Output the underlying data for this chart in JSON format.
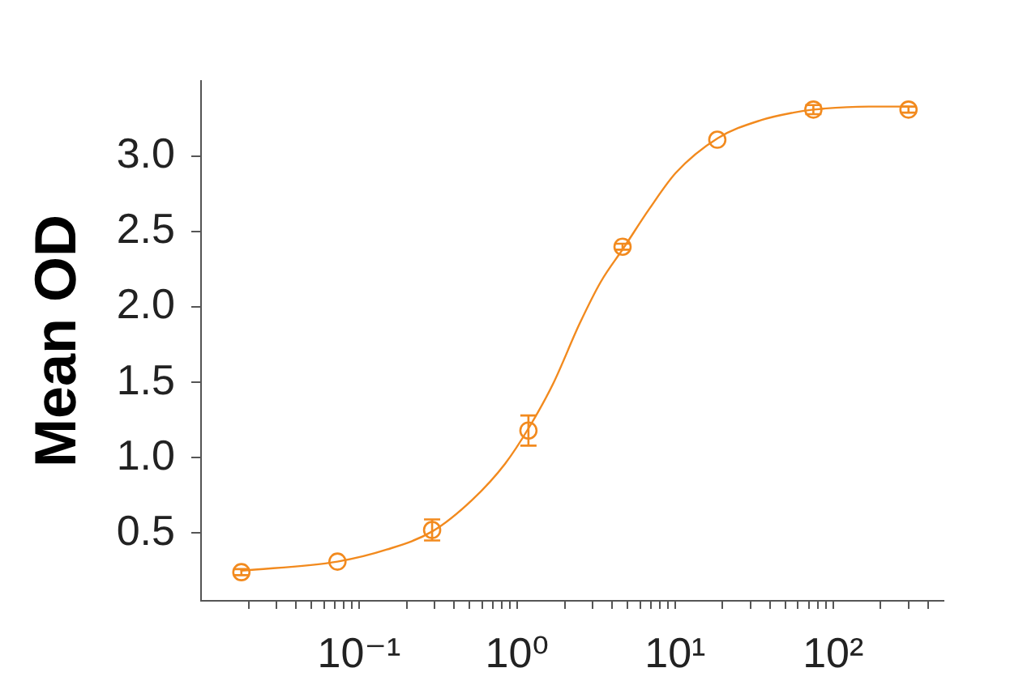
{
  "chart_data": {
    "type": "scatter",
    "ylabel": "Mean OD",
    "log": "x",
    "marker": "circle",
    "xlim": [
      0.01,
      500
    ],
    "xticks": [
      {
        "value": 0.02,
        "label": null
      },
      {
        "value": 0.03,
        "label": null
      },
      {
        "value": 0.04,
        "label": null
      },
      {
        "value": 0.05,
        "label": null
      },
      {
        "value": 0.06,
        "label": null
      },
      {
        "value": 0.07,
        "label": null
      },
      {
        "value": 0.08,
        "label": null
      },
      {
        "value": 0.09,
        "label": null
      },
      {
        "value": 0.1,
        "label": "10⁻¹"
      },
      {
        "value": 0.2,
        "label": null
      },
      {
        "value": 0.3,
        "label": null
      },
      {
        "value": 0.4,
        "label": null
      },
      {
        "value": 0.5,
        "label": null
      },
      {
        "value": 0.6,
        "label": null
      },
      {
        "value": 0.7,
        "label": null
      },
      {
        "value": 0.8,
        "label": null
      },
      {
        "value": 0.9,
        "label": null
      },
      {
        "value": 1,
        "label": "10⁰"
      },
      {
        "value": 2,
        "label": null
      },
      {
        "value": 3,
        "label": null
      },
      {
        "value": 4,
        "label": null
      },
      {
        "value": 5,
        "label": null
      },
      {
        "value": 6,
        "label": null
      },
      {
        "value": 7,
        "label": null
      },
      {
        "value": 8,
        "label": null
      },
      {
        "value": 9,
        "label": null
      },
      {
        "value": 10,
        "label": "10¹"
      },
      {
        "value": 20,
        "label": null
      },
      {
        "value": 30,
        "label": null
      },
      {
        "value": 40,
        "label": null
      },
      {
        "value": 50,
        "label": null
      },
      {
        "value": 60,
        "label": null
      },
      {
        "value": 70,
        "label": null
      },
      {
        "value": 80,
        "label": null
      },
      {
        "value": 90,
        "label": null
      },
      {
        "value": 100,
        "label": "10²"
      },
      {
        "value": 200,
        "label": null
      },
      {
        "value": 300,
        "label": null
      },
      {
        "value": 400,
        "label": null
      }
    ],
    "ylim": [
      0.05,
      3.5
    ],
    "yticks": [
      0.5,
      {
        "value": 1,
        "label": "1.0"
      },
      1.5,
      {
        "value": 2,
        "label": "2.0"
      },
      2.5,
      {
        "value": 3,
        "label": "3.0"
      }
    ],
    "series": [
      {
        "color": "#f28a1e",
        "x": [
          0.018,
          0.073,
          0.29,
          1.18,
          4.65,
          18.5,
          75,
          300
        ],
        "values": [
          0.24,
          0.31,
          0.52,
          1.18,
          2.4,
          3.11,
          3.31,
          3.31
        ],
        "errors": [
          0.02,
          null,
          0.07,
          0.1,
          0.02,
          null,
          0.03,
          0.02
        ]
      },
      {
        "type": "line",
        "color": "#f28a1e",
        "marker": "none",
        "line_style": "solid",
        "x": [
          0.018,
          0.073,
          0.15,
          0.29,
          0.52,
          0.84,
          1.19,
          1.69,
          2.49,
          3.4,
          4.71,
          6.86,
          10.1,
          18.6,
          35,
          56,
          75,
          168,
          300
        ],
        "values": [
          0.25,
          0.31,
          0.39,
          0.51,
          0.72,
          0.96,
          1.2,
          1.49,
          1.89,
          2.17,
          2.39,
          2.65,
          2.89,
          3.12,
          3.24,
          3.29,
          3.31,
          3.33,
          3.33
        ]
      }
    ]
  }
}
